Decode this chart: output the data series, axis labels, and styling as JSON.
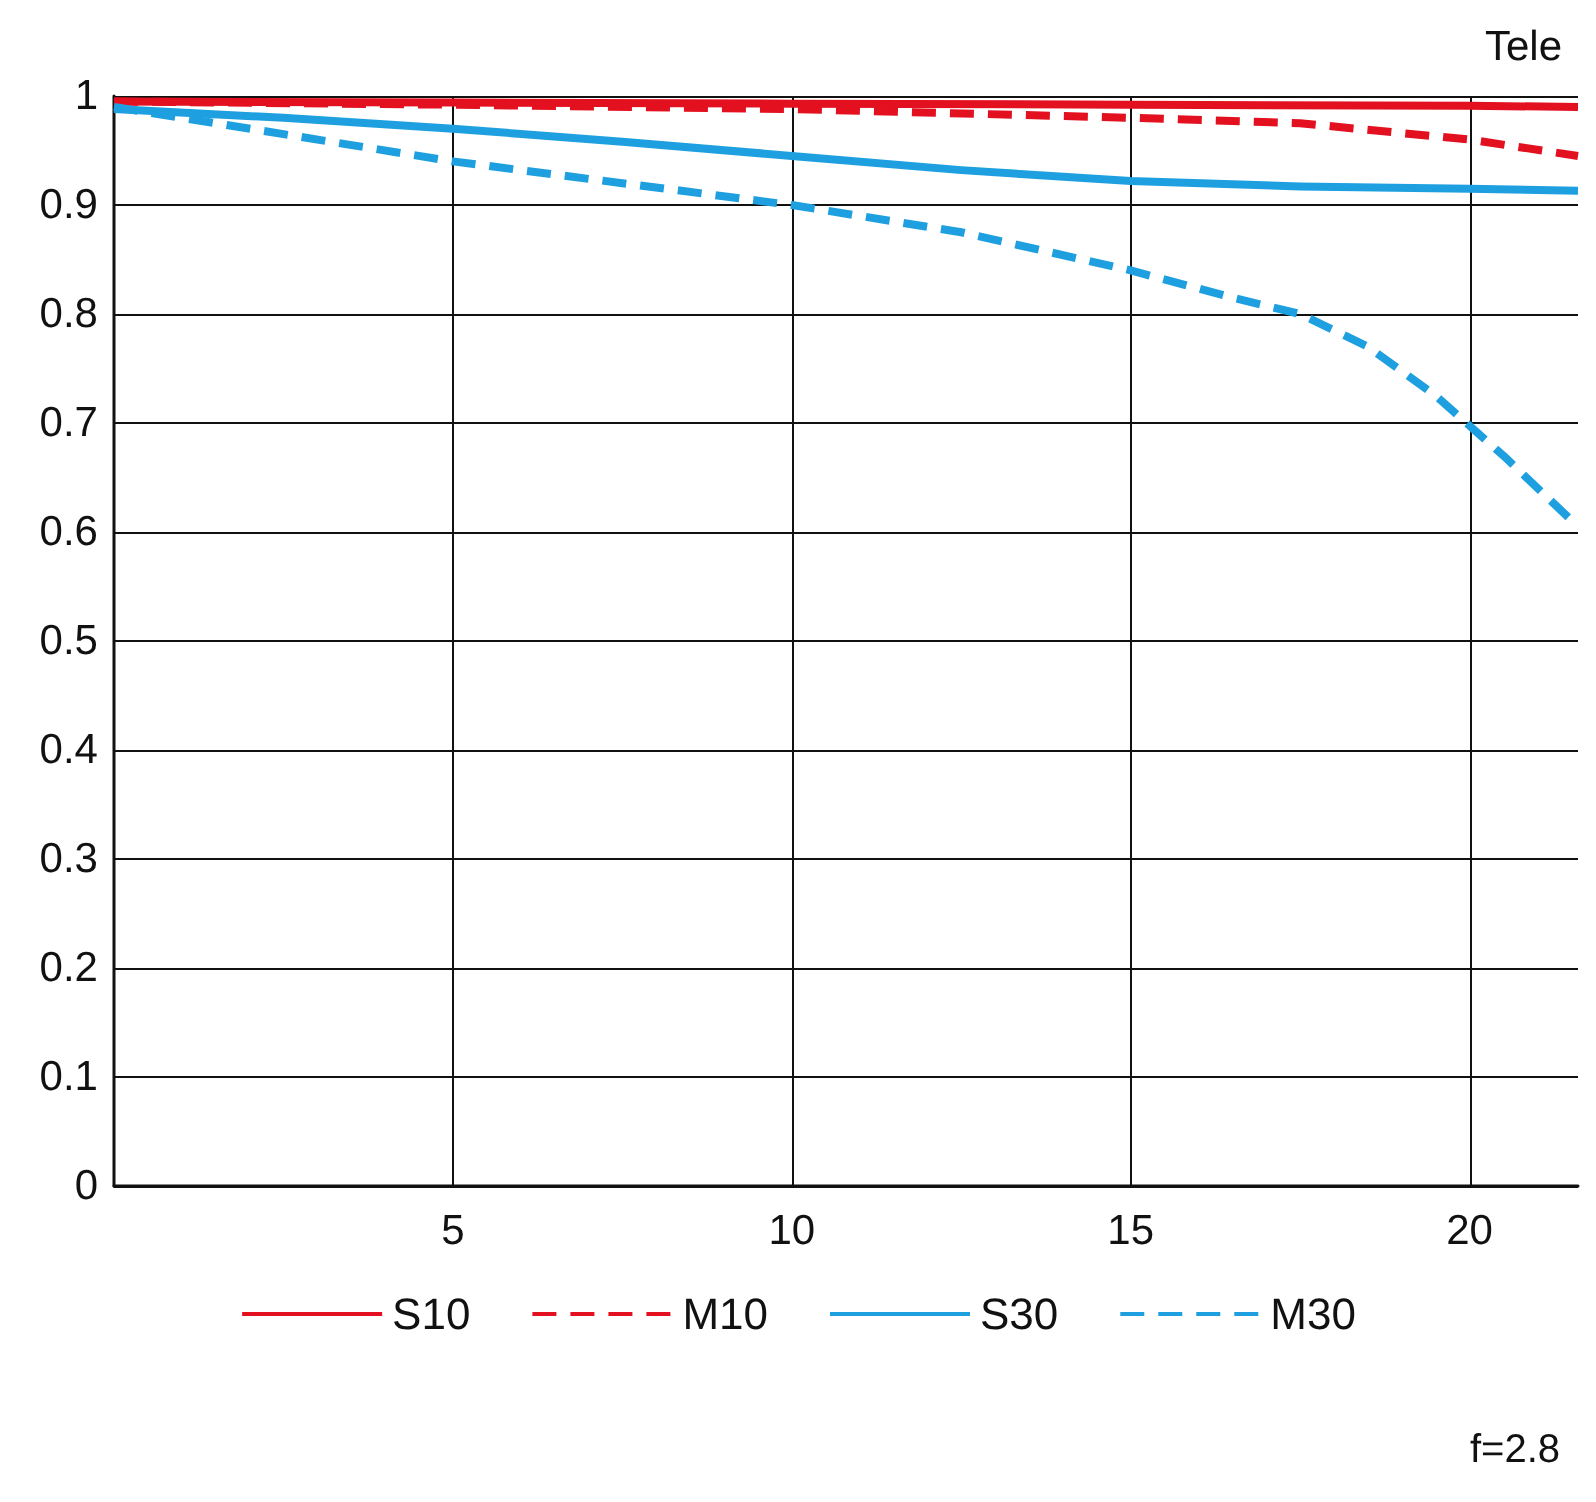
{
  "chart_data": {
    "type": "line",
    "title": "Tele",
    "annotations": [
      "f=2.8"
    ],
    "xlim": [
      0,
      21.6
    ],
    "xticks": [
      5,
      10,
      15,
      20
    ],
    "ylim": [
      0,
      1
    ],
    "yticks": [
      0,
      0.1,
      0.2,
      0.3,
      0.4,
      0.5,
      0.6,
      0.7,
      0.8,
      0.9,
      1
    ],
    "grid": true,
    "legend": "bottom",
    "marker": "none",
    "series": [
      {
        "name": "S10",
        "color": "#e3101f",
        "line_style": "solid",
        "x": [
          0,
          5,
          10,
          15,
          20,
          21.6
        ],
        "values": [
          0.995,
          0.994,
          0.993,
          0.992,
          0.991,
          0.99
        ]
      },
      {
        "name": "M10",
        "color": "#e3101f",
        "line_style": "dashed",
        "x": [
          0,
          5,
          10,
          15,
          17.5,
          20,
          21.6
        ],
        "values": [
          0.995,
          0.992,
          0.988,
          0.98,
          0.975,
          0.96,
          0.945
        ]
      },
      {
        "name": "S30",
        "color": "#1ea0e0",
        "line_style": "solid",
        "x": [
          0,
          2.5,
          5,
          7.5,
          10,
          12.5,
          15,
          17.5,
          20,
          21.6
        ],
        "values": [
          0.988,
          0.98,
          0.97,
          0.958,
          0.945,
          0.932,
          0.922,
          0.917,
          0.915,
          0.913
        ]
      },
      {
        "name": "M30",
        "color": "#1ea0e0",
        "line_style": "dashed",
        "x": [
          0,
          2.5,
          5,
          7.5,
          10,
          12.5,
          15,
          16.5,
          17.5,
          18.5,
          19.5,
          20.5,
          21.6
        ],
        "values": [
          0.99,
          0.965,
          0.94,
          0.92,
          0.9,
          0.875,
          0.84,
          0.815,
          0.8,
          0.77,
          0.725,
          0.67,
          0.605
        ]
      }
    ]
  }
}
